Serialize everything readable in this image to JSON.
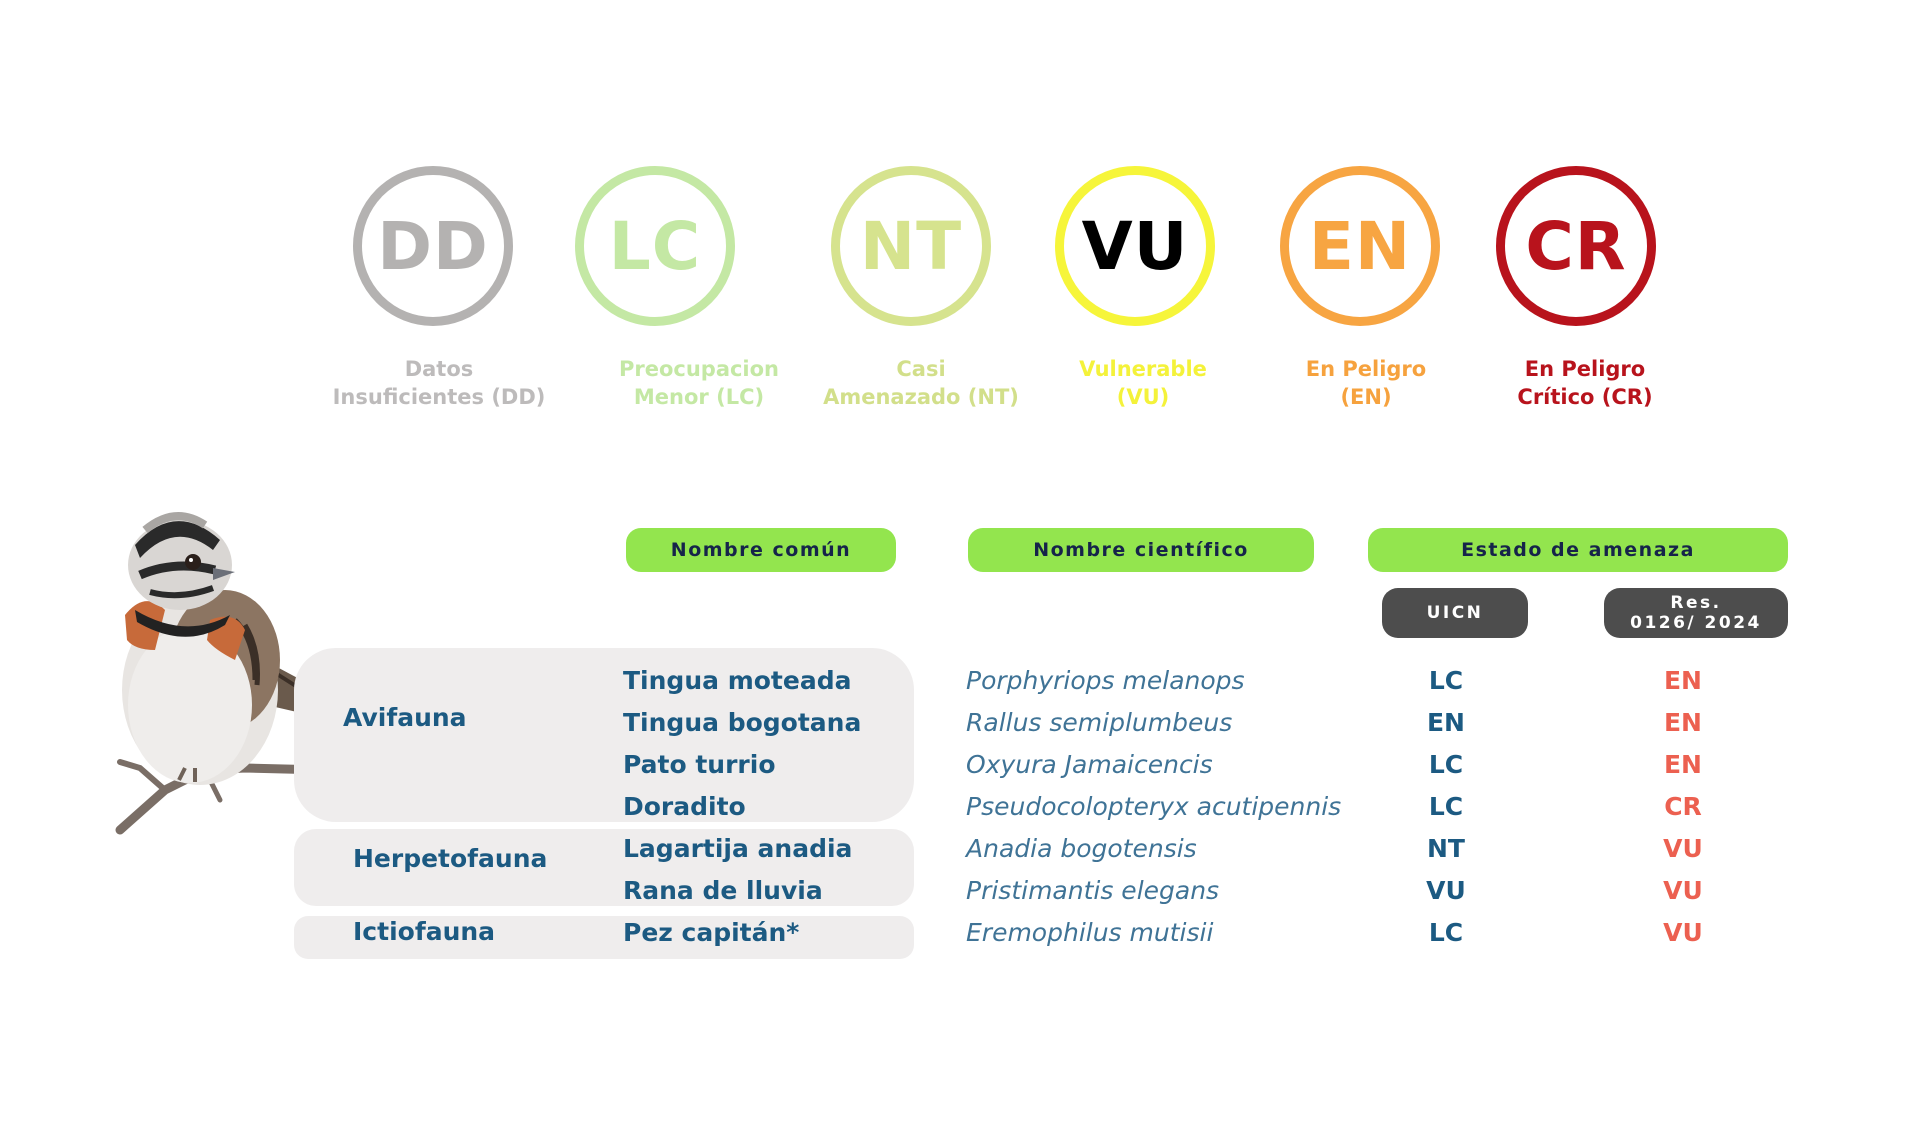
{
  "categories": [
    {
      "code": "DD",
      "label_line1": "Datos",
      "label_line2": "Insuficientes (DD)",
      "color": "#b4b2b1",
      "label_color": "#bdbbbb"
    },
    {
      "code": "LC",
      "label_line1": "Preocupacion",
      "label_line2": "Menor (LC)",
      "color": "#c4e8a4",
      "label_color": "#c4e8a4"
    },
    {
      "code": "NT",
      "label_line1": "Casi",
      "label_line2": "Amenazado (NT)",
      "color": "#d6e38e",
      "label_color": "#d2df8a"
    },
    {
      "code": "VU",
      "label_line1": "Vulnerable",
      "label_line2": "(VU)",
      "color": "#f6f53a",
      "label_color": "#f4f23a",
      "code_color": "#000000"
    },
    {
      "code": "EN",
      "label_line1": "En Peligro",
      "label_line2": "(EN)",
      "color": "#f7a542",
      "label_color": "#f6a23e"
    },
    {
      "code": "CR",
      "label_line1": "En Peligro",
      "label_line2": "Crítico (CR)",
      "color": "#b8131c",
      "label_color": "#b8131c"
    }
  ],
  "headers": {
    "common_name": "Nombre común",
    "scientific_name": "Nombre científico",
    "threat_status": "Estado de amenaza",
    "uicn": "UICN",
    "res_line1": "Res.",
    "res_line2": "0126/ 2024"
  },
  "groups": [
    {
      "name": "Avifauna"
    },
    {
      "name": "Herpetofauna"
    },
    {
      "name": "Ictiofauna"
    }
  ],
  "species": [
    {
      "common": "Tingua moteada",
      "scientific": "Porphyriops melanops",
      "uicn": "LC",
      "res": "EN"
    },
    {
      "common": "Tingua bogotana",
      "scientific": "Rallus semiplumbeus",
      "uicn": "EN",
      "res": "EN"
    },
    {
      "common": "Pato turrio",
      "scientific": "Oxyura Jamaicencis",
      "uicn": "LC",
      "res": "EN"
    },
    {
      "common": "Doradito",
      "scientific": "Pseudocolopteryx acutipennis",
      "uicn": "LC",
      "res": "CR"
    },
    {
      "common": "Lagartija anadia",
      "scientific": "Anadia bogotensis",
      "uicn": "NT",
      "res": "VU"
    },
    {
      "common": "Rana de lluvia",
      "scientific": "Pristimantis elegans",
      "uicn": "VU",
      "res": "VU"
    },
    {
      "common": "Pez capitán*",
      "scientific": "Eremophilus mutisii",
      "uicn": "LC",
      "res": "VU"
    }
  ],
  "colors": {
    "accent_green": "#93e54e",
    "header_text": "#16244a",
    "dark_blue": "#1c5a82",
    "scientific_blue": "#3f7396",
    "res_red": "#ec6050",
    "group_bg": "#efeded",
    "gray_pill": "#4d4d4d"
  }
}
